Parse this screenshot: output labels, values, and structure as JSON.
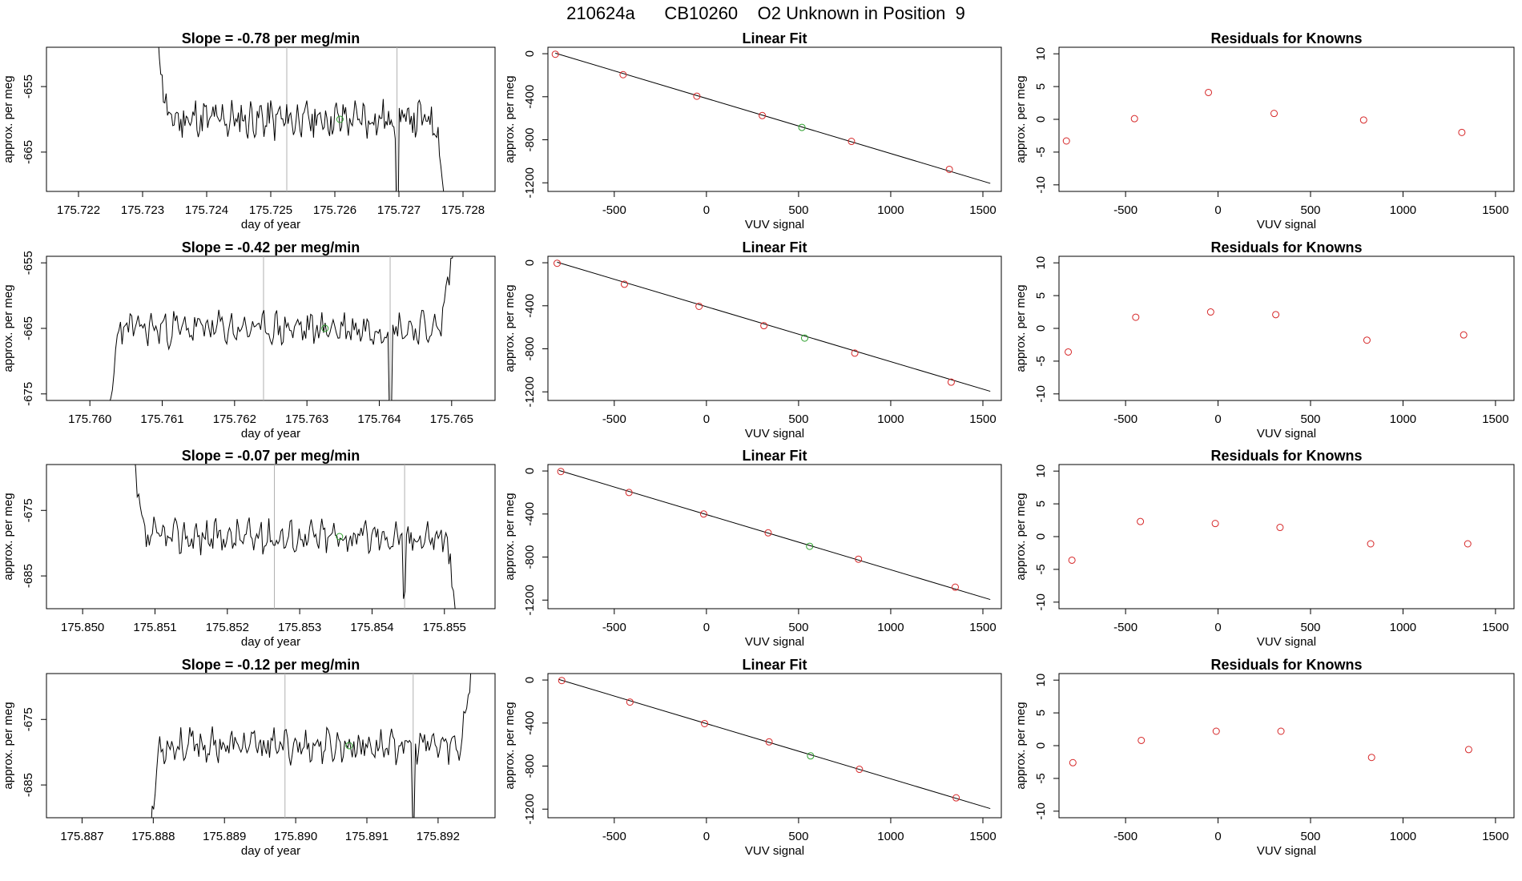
{
  "page_title": "210624a      CB10260    O2 Unknown in Position  9",
  "colors": {
    "series": "#000000",
    "known_point": "#d62728",
    "unknown_point": "#2ca02c",
    "marker_line": "#b0b0b0",
    "fit_line": "#000000"
  },
  "chart_data": [
    {
      "type": "line",
      "row": 0,
      "column": "timeseries",
      "title": "Slope =  -0.78  per meg/min",
      "xlabel": "day of year",
      "ylabel": "approx. per meg",
      "xlim": [
        175.7215,
        175.7285
      ],
      "ylim": [
        -671,
        -649
      ],
      "xticks": [
        "175.722",
        "175.723",
        "175.724",
        "175.725",
        "175.726",
        "175.727",
        "175.728"
      ],
      "yticks": [
        "-655",
        "-665"
      ],
      "vlines": [
        175.72525,
        175.72697
      ],
      "series": {
        "x_start": 175.7232,
        "x_end": 175.7278,
        "baseline": -660,
        "noise": 2.3,
        "seed": 11,
        "head": 10,
        "tail": -11,
        "spike_at": 175.72697,
        "spike_depth": -16
      },
      "unknown_point": {
        "x": 175.72608,
        "y": -660
      }
    },
    {
      "type": "scatter",
      "row": 0,
      "column": "fit",
      "title": "Linear Fit",
      "xlabel": "VUV signal",
      "ylabel": "approx. per meg",
      "xlim": [
        -860,
        1600
      ],
      "ylim": [
        -1280,
        60
      ],
      "xticks": [
        "-500",
        "0",
        "500",
        "1000",
        "1500"
      ],
      "yticks": [
        "0",
        "-400",
        "-800",
        "-1200"
      ],
      "fit": {
        "x0": -820,
        "y0": 5,
        "x1": 1540,
        "y1": -1205
      },
      "knowns": [
        [
          -820,
          -5
        ],
        [
          -452,
          -195
        ],
        [
          -52,
          -395
        ],
        [
          303,
          -575
        ],
        [
          787,
          -815
        ],
        [
          1318,
          -1075
        ]
      ],
      "unknown": [
        518,
        -685
      ]
    },
    {
      "type": "scatter",
      "row": 0,
      "column": "residuals",
      "title": "Residuals for Knowns",
      "xlabel": "VUV signal",
      "ylabel": "approx. per meg",
      "xlim": [
        -860,
        1600
      ],
      "ylim": [
        -11,
        11
      ],
      "xticks": [
        "-500",
        "0",
        "500",
        "1000",
        "1500"
      ],
      "yticks": [
        "10",
        "5",
        "0",
        "-5",
        "-10"
      ],
      "points": [
        [
          -820,
          -3.3
        ],
        [
          -452,
          0.1
        ],
        [
          -52,
          4.1
        ],
        [
          303,
          0.9
        ],
        [
          787,
          -0.1
        ],
        [
          1318,
          -2.0
        ]
      ]
    },
    {
      "type": "line",
      "row": 1,
      "column": "timeseries",
      "title": "Slope =  -0.42  per meg/min",
      "xlabel": "day of year",
      "ylabel": "approx. per meg",
      "xlim": [
        175.7594,
        175.7656
      ],
      "ylim": [
        -676,
        -654
      ],
      "xticks": [
        "175.760",
        "175.761",
        "175.762",
        "175.763",
        "175.764",
        "175.765"
      ],
      "yticks": [
        "-655",
        "-665",
        "-675"
      ],
      "vlines": [
        175.7624,
        175.76415
      ],
      "series": {
        "x_start": 175.7602,
        "x_end": 175.7651,
        "baseline": -665,
        "noise": 2.0,
        "seed": 23,
        "head": -12,
        "tail": 12,
        "spike_at": 175.76415,
        "spike_depth": -14
      },
      "unknown_point": {
        "x": 175.76325,
        "y": -665
      }
    },
    {
      "type": "scatter",
      "row": 1,
      "column": "fit",
      "title": "Linear Fit",
      "xlabel": "VUV signal",
      "ylabel": "approx. per meg",
      "xlim": [
        -860,
        1600
      ],
      "ylim": [
        -1280,
        60
      ],
      "xticks": [
        "-500",
        "0",
        "500",
        "1000",
        "1500"
      ],
      "yticks": [
        "0",
        "-400",
        "-800",
        "-1200"
      ],
      "fit": {
        "x0": -810,
        "y0": 5,
        "x1": 1540,
        "y1": -1195
      },
      "knowns": [
        [
          -810,
          -5
        ],
        [
          -445,
          -200
        ],
        [
          -40,
          -405
        ],
        [
          312,
          -585
        ],
        [
          805,
          -840
        ],
        [
          1328,
          -1110
        ]
      ],
      "unknown": [
        533,
        -700
      ]
    },
    {
      "type": "scatter",
      "row": 1,
      "column": "residuals",
      "title": "Residuals for Knowns",
      "xlabel": "VUV signal",
      "ylabel": "approx. per meg",
      "xlim": [
        -860,
        1600
      ],
      "ylim": [
        -11,
        11
      ],
      "xticks": [
        "-500",
        "0",
        "500",
        "1000",
        "1500"
      ],
      "yticks": [
        "10",
        "5",
        "0",
        "-5",
        "-10"
      ],
      "points": [
        [
          -810,
          -3.6
        ],
        [
          -445,
          1.7
        ],
        [
          -40,
          2.5
        ],
        [
          312,
          2.1
        ],
        [
          805,
          -1.8
        ],
        [
          1328,
          -1.0
        ]
      ]
    },
    {
      "type": "line",
      "row": 2,
      "column": "timeseries",
      "title": "Slope =  -0.07  per meg/min",
      "xlabel": "day of year",
      "ylabel": "approx. per meg",
      "xlim": [
        175.8495,
        175.8557
      ],
      "ylim": [
        -690,
        -668
      ],
      "xticks": [
        "175.850",
        "175.851",
        "175.852",
        "175.853",
        "175.854",
        "175.855"
      ],
      "yticks": [
        "-675",
        "-685"
      ],
      "vlines": [
        175.85265,
        175.85445
      ],
      "series": {
        "x_start": 175.85065,
        "x_end": 175.85525,
        "baseline": -679,
        "noise": 2.0,
        "seed": 37,
        "head": 11,
        "tail": -12,
        "spike_at": 175.85445,
        "spike_depth": -10
      },
      "unknown_point": {
        "x": 175.85355,
        "y": -679
      }
    },
    {
      "type": "scatter",
      "row": 2,
      "column": "fit",
      "title": "Linear Fit",
      "xlabel": "VUV signal",
      "ylabel": "approx. per meg",
      "xlim": [
        -860,
        1600
      ],
      "ylim": [
        -1280,
        60
      ],
      "xticks": [
        "-500",
        "0",
        "500",
        "1000",
        "1500"
      ],
      "yticks": [
        "0",
        "-400",
        "-800",
        "-1200"
      ],
      "fit": {
        "x0": -800,
        "y0": 5,
        "x1": 1540,
        "y1": -1195
      },
      "knowns": [
        [
          -790,
          -5
        ],
        [
          -420,
          -200
        ],
        [
          -15,
          -400
        ],
        [
          335,
          -575
        ],
        [
          825,
          -820
        ],
        [
          1350,
          -1080
        ]
      ],
      "unknown": [
        560,
        -700
      ]
    },
    {
      "type": "scatter",
      "row": 2,
      "column": "residuals",
      "title": "Residuals for Knowns",
      "xlabel": "VUV signal",
      "ylabel": "approx. per meg",
      "xlim": [
        -860,
        1600
      ],
      "ylim": [
        -11,
        11
      ],
      "xticks": [
        "-500",
        "0",
        "500",
        "1000",
        "1500"
      ],
      "yticks": [
        "10",
        "5",
        "0",
        "-5",
        "-10"
      ],
      "points": [
        [
          -790,
          -3.6
        ],
        [
          -420,
          2.3
        ],
        [
          -15,
          2.0
        ],
        [
          335,
          1.4
        ],
        [
          825,
          -1.1
        ],
        [
          1350,
          -1.1
        ]
      ]
    },
    {
      "type": "line",
      "row": 3,
      "column": "timeseries",
      "title": "Slope =  -0.12  per meg/min",
      "xlabel": "day of year",
      "ylabel": "approx. per meg",
      "xlim": [
        175.8865,
        175.8928
      ],
      "ylim": [
        -690,
        -668
      ],
      "xticks": [
        "175.887",
        "175.888",
        "175.889",
        "175.890",
        "175.891",
        "175.892"
      ],
      "yticks": [
        "-675",
        "-685"
      ],
      "vlines": [
        175.88985,
        175.89165
      ],
      "series": {
        "x_start": 175.8879,
        "x_end": 175.89255,
        "baseline": -679,
        "noise": 1.9,
        "seed": 53,
        "head": -12,
        "tail": 12,
        "spike_at": 175.89165,
        "spike_depth": -12
      },
      "unknown_point": {
        "x": 175.89075,
        "y": -679
      }
    },
    {
      "type": "scatter",
      "row": 3,
      "column": "fit",
      "title": "Linear Fit",
      "xlabel": "VUV signal",
      "ylabel": "approx. per meg",
      "xlim": [
        -860,
        1600
      ],
      "ylim": [
        -1280,
        60
      ],
      "xticks": [
        "-500",
        "0",
        "500",
        "1000",
        "1500"
      ],
      "yticks": [
        "0",
        "-400",
        "-800",
        "-1200"
      ],
      "fit": {
        "x0": -800,
        "y0": 5,
        "x1": 1540,
        "y1": -1195
      },
      "knowns": [
        [
          -785,
          -5
        ],
        [
          -415,
          -205
        ],
        [
          -10,
          -405
        ],
        [
          340,
          -575
        ],
        [
          830,
          -830
        ],
        [
          1355,
          -1095
        ]
      ],
      "unknown": [
        565,
        -705
      ]
    },
    {
      "type": "scatter",
      "row": 3,
      "column": "residuals",
      "title": "Residuals for Knowns",
      "xlabel": "VUV signal",
      "ylabel": "approx. per meg",
      "xlim": [
        -860,
        1600
      ],
      "ylim": [
        -11,
        11
      ],
      "xticks": [
        "-500",
        "0",
        "500",
        "1000",
        "1500"
      ],
      "yticks": [
        "10",
        "5",
        "0",
        "-5",
        "-10"
      ],
      "points": [
        [
          -785,
          -2.6
        ],
        [
          -415,
          0.8
        ],
        [
          -10,
          2.2
        ],
        [
          340,
          2.2
        ],
        [
          830,
          -1.8
        ],
        [
          1355,
          -0.6
        ]
      ]
    }
  ]
}
